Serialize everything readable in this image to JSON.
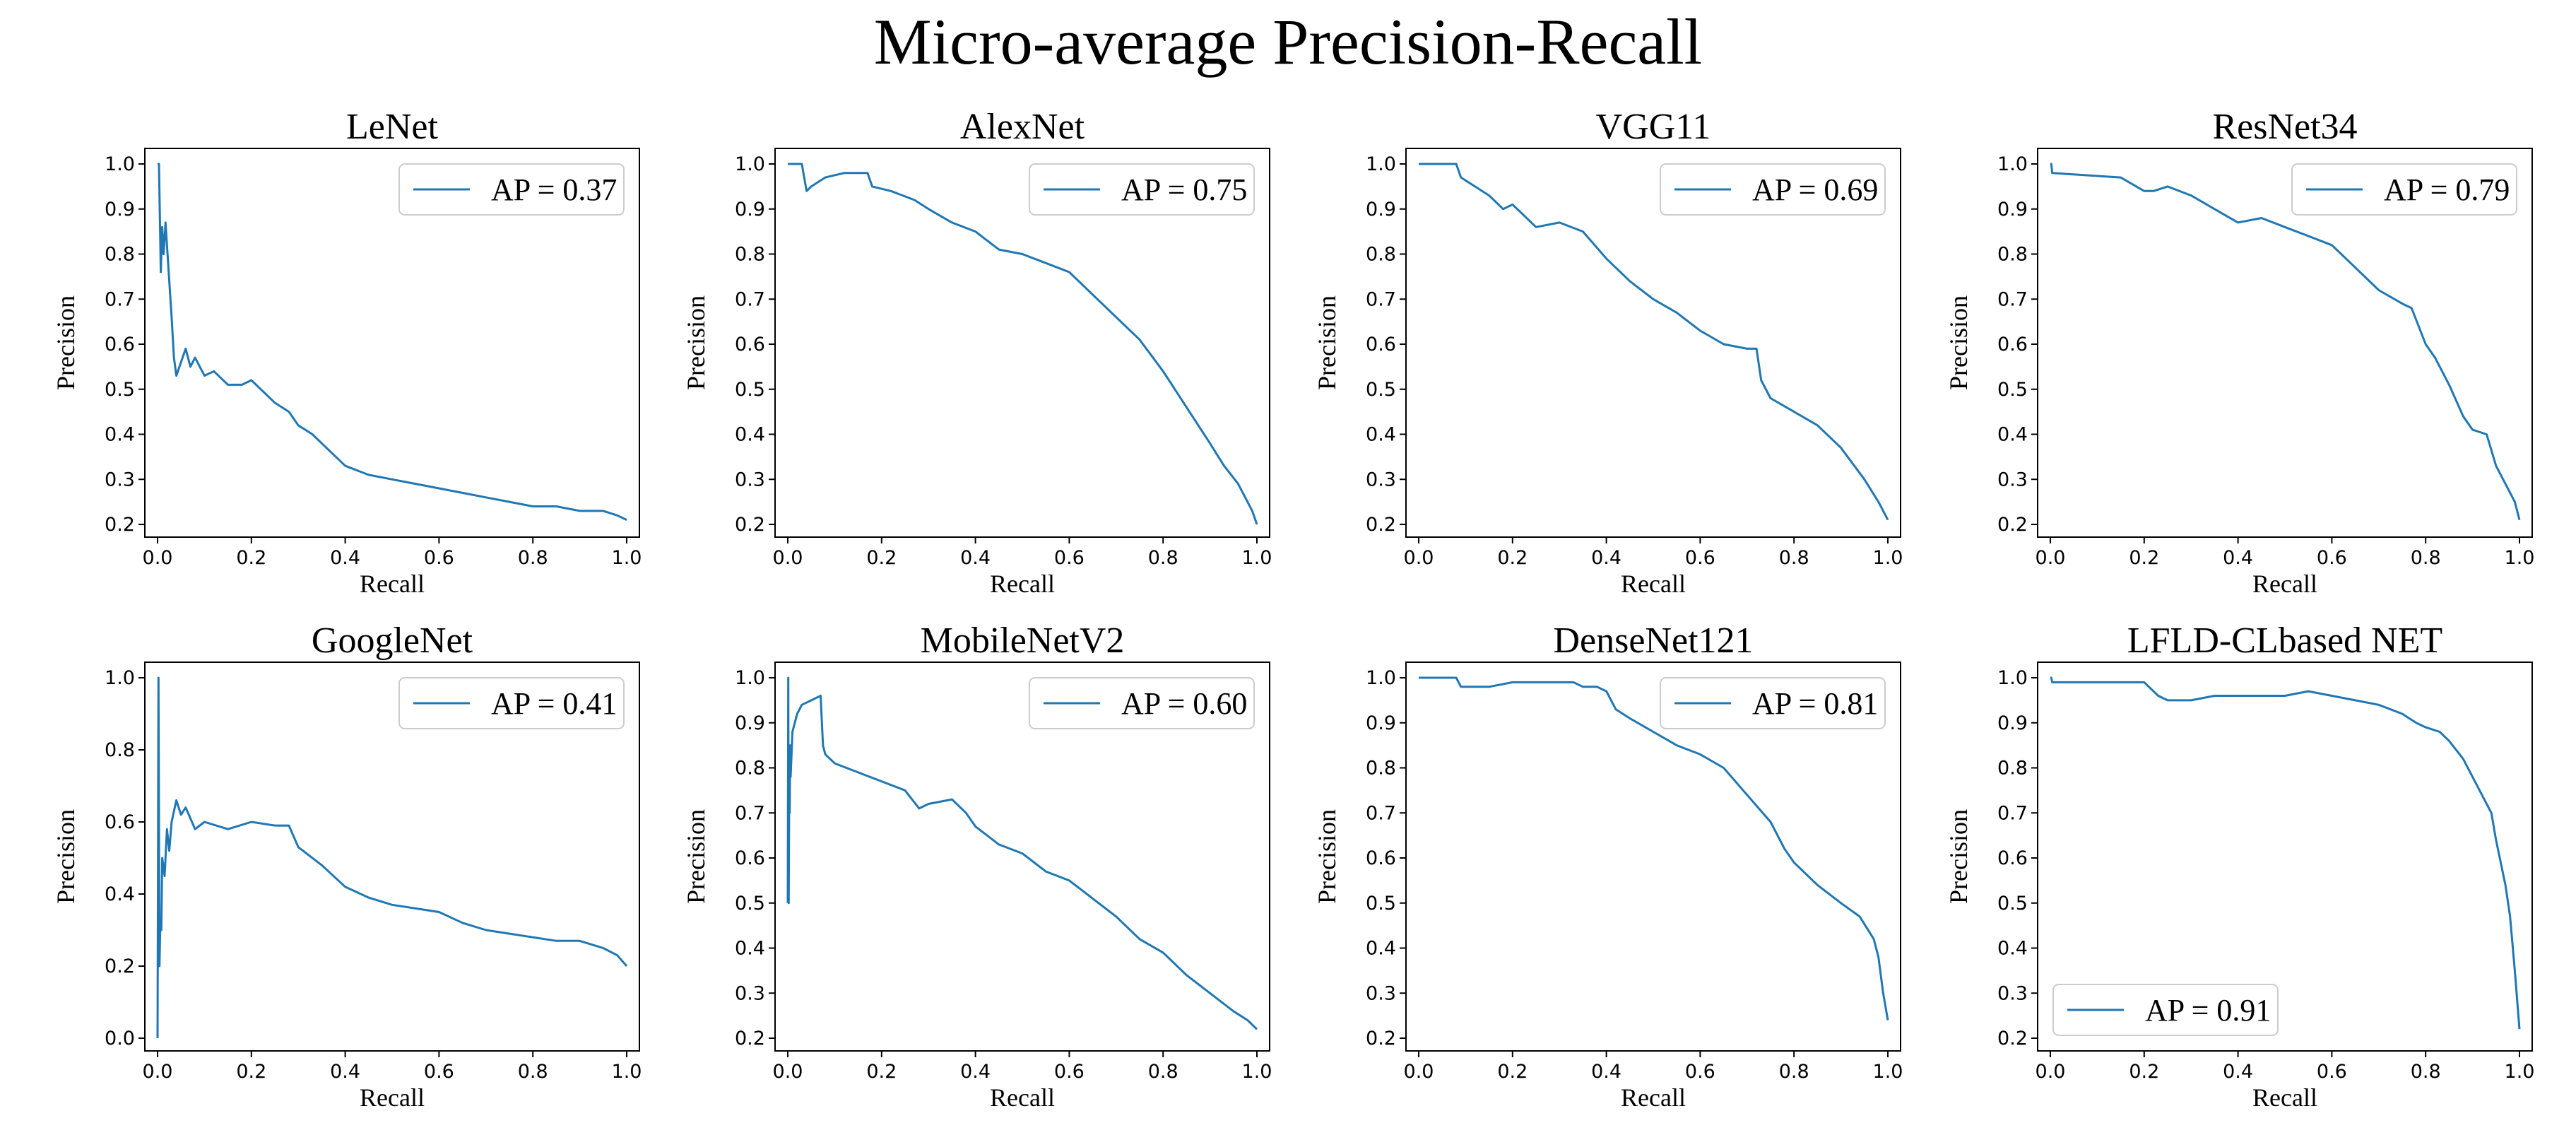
{
  "figure": {
    "title": "Micro-average Precision-Recall"
  },
  "colors": {
    "series": "#1f77b4",
    "axes": "#000000",
    "legend_border": "#cccccc"
  },
  "chart_data": [
    {
      "type": "line",
      "title": "LeNet",
      "xlabel": "Recall",
      "ylabel": "Precision",
      "xlim": [
        0,
        1
      ],
      "ylim": [
        0.2,
        1.0
      ],
      "xticks": [
        "0.0",
        "0.2",
        "0.4",
        "0.6",
        "0.8",
        "1.0"
      ],
      "yticks": [
        "0.2",
        "0.3",
        "0.4",
        "0.5",
        "0.6",
        "0.7",
        "0.8",
        "0.9",
        "1.0"
      ],
      "legend": "top-right",
      "series": [
        {
          "name": "AP = 0.37",
          "x": [
            0,
            0.003,
            0.007,
            0.01,
            0.013,
            0.017,
            0.02,
            0.025,
            0.03,
            0.035,
            0.04,
            0.05,
            0.06,
            0.07,
            0.08,
            0.1,
            0.12,
            0.15,
            0.18,
            0.2,
            0.22,
            0.25,
            0.28,
            0.3,
            0.33,
            0.35,
            0.4,
            0.45,
            0.5,
            0.55,
            0.6,
            0.65,
            0.7,
            0.75,
            0.8,
            0.85,
            0.9,
            0.95,
            0.98,
            1.0
          ],
          "y": [
            1.0,
            1.0,
            0.76,
            0.86,
            0.8,
            0.87,
            0.82,
            0.74,
            0.66,
            0.57,
            0.53,
            0.56,
            0.59,
            0.55,
            0.57,
            0.53,
            0.54,
            0.51,
            0.51,
            0.52,
            0.5,
            0.47,
            0.45,
            0.42,
            0.4,
            0.38,
            0.33,
            0.31,
            0.3,
            0.29,
            0.28,
            0.27,
            0.26,
            0.25,
            0.24,
            0.24,
            0.23,
            0.23,
            0.22,
            0.21
          ]
        }
      ]
    },
    {
      "type": "line",
      "title": "AlexNet",
      "xlabel": "Recall",
      "ylabel": "Precision",
      "xlim": [
        0,
        1
      ],
      "ylim": [
        0.2,
        1.0
      ],
      "xticks": [
        "0.0",
        "0.2",
        "0.4",
        "0.6",
        "0.8",
        "1.0"
      ],
      "yticks": [
        "0.2",
        "0.3",
        "0.4",
        "0.5",
        "0.6",
        "0.7",
        "0.8",
        "0.9",
        "1.0"
      ],
      "legend": "top-right",
      "series": [
        {
          "name": "AP = 0.75",
          "x": [
            0,
            0.03,
            0.04,
            0.05,
            0.08,
            0.12,
            0.17,
            0.18,
            0.22,
            0.27,
            0.3,
            0.35,
            0.4,
            0.45,
            0.5,
            0.55,
            0.6,
            0.65,
            0.7,
            0.75,
            0.8,
            0.85,
            0.9,
            0.93,
            0.96,
            0.98,
            0.99,
            1.0
          ],
          "y": [
            1.0,
            1.0,
            0.94,
            0.95,
            0.97,
            0.98,
            0.98,
            0.95,
            0.94,
            0.92,
            0.9,
            0.87,
            0.85,
            0.81,
            0.8,
            0.78,
            0.76,
            0.71,
            0.66,
            0.61,
            0.54,
            0.46,
            0.38,
            0.33,
            0.29,
            0.25,
            0.23,
            0.2
          ]
        }
      ]
    },
    {
      "type": "line",
      "title": "VGG11",
      "xlabel": "Recall",
      "ylabel": "Precision",
      "xlim": [
        0,
        1
      ],
      "ylim": [
        0.2,
        1.0
      ],
      "xticks": [
        "0.0",
        "0.2",
        "0.4",
        "0.6",
        "0.8",
        "1.0"
      ],
      "yticks": [
        "0.2",
        "0.3",
        "0.4",
        "0.5",
        "0.6",
        "0.7",
        "0.8",
        "0.9",
        "1.0"
      ],
      "legend": "top-right",
      "series": [
        {
          "name": "AP = 0.69",
          "x": [
            0,
            0.08,
            0.09,
            0.12,
            0.15,
            0.18,
            0.2,
            0.22,
            0.25,
            0.3,
            0.35,
            0.4,
            0.45,
            0.5,
            0.55,
            0.6,
            0.65,
            0.7,
            0.72,
            0.73,
            0.75,
            0.8,
            0.85,
            0.9,
            0.95,
            0.98,
            1.0
          ],
          "y": [
            1.0,
            1.0,
            0.97,
            0.95,
            0.93,
            0.9,
            0.91,
            0.89,
            0.86,
            0.87,
            0.85,
            0.79,
            0.74,
            0.7,
            0.67,
            0.63,
            0.6,
            0.59,
            0.59,
            0.52,
            0.48,
            0.45,
            0.42,
            0.37,
            0.3,
            0.25,
            0.21
          ]
        }
      ]
    },
    {
      "type": "line",
      "title": "ResNet34",
      "xlabel": "Recall",
      "ylabel": "Precision",
      "xlim": [
        0,
        1
      ],
      "ylim": [
        0.2,
        1.0
      ],
      "xticks": [
        "0.0",
        "0.2",
        "0.4",
        "0.6",
        "0.8",
        "1.0"
      ],
      "yticks": [
        "0.2",
        "0.3",
        "0.4",
        "0.5",
        "0.6",
        "0.7",
        "0.8",
        "0.9",
        "1.0"
      ],
      "legend": "top-right",
      "series": [
        {
          "name": "AP = 0.79",
          "x": [
            0,
            0.002,
            0.004,
            0.15,
            0.2,
            0.22,
            0.25,
            0.3,
            0.35,
            0.4,
            0.45,
            0.5,
            0.55,
            0.6,
            0.65,
            0.7,
            0.75,
            0.77,
            0.8,
            0.82,
            0.85,
            0.88,
            0.9,
            0.93,
            0.95,
            0.97,
            0.99,
            1.0
          ],
          "y": [
            1.0,
            1.0,
            0.98,
            0.97,
            0.94,
            0.94,
            0.95,
            0.93,
            0.9,
            0.87,
            0.88,
            0.86,
            0.84,
            0.82,
            0.77,
            0.72,
            0.69,
            0.68,
            0.6,
            0.57,
            0.51,
            0.44,
            0.41,
            0.4,
            0.33,
            0.29,
            0.25,
            0.21
          ]
        }
      ]
    },
    {
      "type": "line",
      "title": "GoogleNet",
      "xlabel": "Recall",
      "ylabel": "Precision",
      "xlim": [
        0,
        1
      ],
      "ylim": [
        0.0,
        1.0
      ],
      "xticks": [
        "0.0",
        "0.2",
        "0.4",
        "0.6",
        "0.8",
        "1.0"
      ],
      "yticks": [
        "0.0",
        "0.2",
        "0.4",
        "0.6",
        "0.8",
        "1.0"
      ],
      "legend": "top-right",
      "series": [
        {
          "name": "AP = 0.41",
          "x": [
            0,
            0.002,
            0.004,
            0.006,
            0.008,
            0.01,
            0.015,
            0.02,
            0.025,
            0.03,
            0.04,
            0.05,
            0.06,
            0.08,
            0.1,
            0.15,
            0.2,
            0.25,
            0.28,
            0.3,
            0.35,
            0.4,
            0.45,
            0.5,
            0.55,
            0.6,
            0.65,
            0.7,
            0.75,
            0.8,
            0.85,
            0.9,
            0.95,
            0.98,
            1.0
          ],
          "y": [
            0.0,
            1.0,
            0.2,
            0.33,
            0.3,
            0.5,
            0.45,
            0.58,
            0.52,
            0.6,
            0.66,
            0.62,
            0.64,
            0.58,
            0.6,
            0.58,
            0.6,
            0.59,
            0.59,
            0.53,
            0.48,
            0.42,
            0.39,
            0.37,
            0.36,
            0.35,
            0.32,
            0.3,
            0.29,
            0.28,
            0.27,
            0.27,
            0.25,
            0.23,
            0.2
          ]
        }
      ]
    },
    {
      "type": "line",
      "title": "MobileNetV2",
      "xlabel": "Recall",
      "ylabel": "Precision",
      "xlim": [
        0,
        1
      ],
      "ylim": [
        0.2,
        1.0
      ],
      "xticks": [
        "0.0",
        "0.2",
        "0.4",
        "0.6",
        "0.8",
        "1.0"
      ],
      "yticks": [
        "0.2",
        "0.3",
        "0.4",
        "0.5",
        "0.6",
        "0.7",
        "0.8",
        "0.9",
        "1.0"
      ],
      "legend": "top-right",
      "series": [
        {
          "name": "AP = 0.60",
          "x": [
            0,
            0.001,
            0.002,
            0.003,
            0.004,
            0.005,
            0.006,
            0.01,
            0.02,
            0.03,
            0.05,
            0.07,
            0.075,
            0.08,
            0.1,
            0.15,
            0.2,
            0.25,
            0.28,
            0.3,
            0.35,
            0.38,
            0.4,
            0.45,
            0.5,
            0.55,
            0.6,
            0.65,
            0.7,
            0.75,
            0.8,
            0.85,
            0.9,
            0.95,
            0.98,
            1.0
          ],
          "y": [
            0.5,
            1.0,
            0.5,
            0.75,
            0.7,
            0.85,
            0.78,
            0.88,
            0.92,
            0.94,
            0.95,
            0.96,
            0.85,
            0.83,
            0.81,
            0.79,
            0.77,
            0.75,
            0.71,
            0.72,
            0.73,
            0.7,
            0.67,
            0.63,
            0.61,
            0.57,
            0.55,
            0.51,
            0.47,
            0.42,
            0.39,
            0.34,
            0.3,
            0.26,
            0.24,
            0.22
          ]
        }
      ]
    },
    {
      "type": "line",
      "title": "DenseNet121",
      "xlabel": "Recall",
      "ylabel": "Precision",
      "xlim": [
        0,
        1
      ],
      "ylim": [
        0.2,
        1.0
      ],
      "xticks": [
        "0.0",
        "0.2",
        "0.4",
        "0.6",
        "0.8",
        "1.0"
      ],
      "yticks": [
        "0.2",
        "0.3",
        "0.4",
        "0.5",
        "0.6",
        "0.7",
        "0.8",
        "0.9",
        "1.0"
      ],
      "legend": "top-right",
      "series": [
        {
          "name": "AP = 0.81",
          "x": [
            0,
            0.08,
            0.09,
            0.12,
            0.15,
            0.2,
            0.25,
            0.3,
            0.33,
            0.35,
            0.38,
            0.4,
            0.42,
            0.45,
            0.5,
            0.55,
            0.6,
            0.65,
            0.7,
            0.75,
            0.78,
            0.8,
            0.85,
            0.9,
            0.94,
            0.97,
            0.98,
            0.99,
            1.0
          ],
          "y": [
            1.0,
            1.0,
            0.98,
            0.98,
            0.98,
            0.99,
            0.99,
            0.99,
            0.99,
            0.98,
            0.98,
            0.97,
            0.93,
            0.91,
            0.88,
            0.85,
            0.83,
            0.8,
            0.74,
            0.68,
            0.62,
            0.59,
            0.54,
            0.5,
            0.47,
            0.42,
            0.38,
            0.3,
            0.24
          ]
        }
      ]
    },
    {
      "type": "line",
      "title": "LFLD-CLbased NET",
      "xlabel": "Recall",
      "ylabel": "Precision",
      "xlim": [
        0,
        1
      ],
      "ylim": [
        0.2,
        1.0
      ],
      "xticks": [
        "0.0",
        "0.2",
        "0.4",
        "0.6",
        "0.8",
        "1.0"
      ],
      "yticks": [
        "0.2",
        "0.3",
        "0.4",
        "0.5",
        "0.6",
        "0.7",
        "0.8",
        "0.9",
        "1.0"
      ],
      "legend": "bottom-left",
      "series": [
        {
          "name": "AP = 0.91",
          "x": [
            0,
            0.002,
            0.004,
            0.2,
            0.23,
            0.25,
            0.3,
            0.35,
            0.4,
            0.45,
            0.5,
            0.55,
            0.6,
            0.65,
            0.7,
            0.75,
            0.78,
            0.8,
            0.83,
            0.85,
            0.88,
            0.9,
            0.92,
            0.94,
            0.95,
            0.97,
            0.98,
            0.99,
            1.0
          ],
          "y": [
            1.0,
            1.0,
            0.99,
            0.99,
            0.96,
            0.95,
            0.95,
            0.96,
            0.96,
            0.96,
            0.96,
            0.97,
            0.96,
            0.95,
            0.94,
            0.92,
            0.9,
            0.89,
            0.88,
            0.86,
            0.82,
            0.78,
            0.74,
            0.7,
            0.64,
            0.54,
            0.47,
            0.35,
            0.22
          ]
        }
      ]
    }
  ]
}
